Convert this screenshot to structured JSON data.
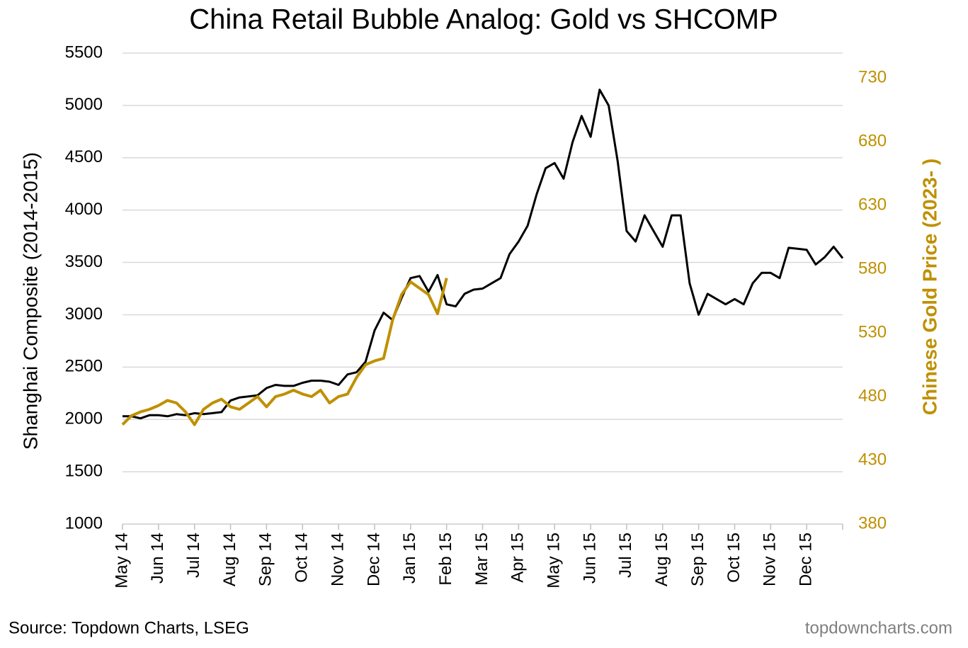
{
  "chart_data": {
    "type": "line",
    "title": "China Retail Bubble Analog: Gold vs SHCOMP",
    "y_label": "Shanghai Composite (2014-2015)",
    "y2_label": "Chinese Gold Price (2023- )",
    "source": "Source: Topdown Charts, LSEG",
    "watermark": "topdowncharts.com",
    "categories": [
      "May 14",
      null,
      null,
      null,
      "Jun 14",
      null,
      null,
      null,
      "Jul 14",
      null,
      null,
      null,
      "Aug 14",
      null,
      null,
      null,
      "Sep 14",
      null,
      null,
      null,
      "Oct 14",
      null,
      null,
      null,
      "Nov 14",
      null,
      null,
      null,
      "Dec 14",
      null,
      null,
      null,
      "Jan 15",
      null,
      null,
      null,
      "Feb 15",
      null,
      null,
      null,
      "Mar 15",
      null,
      null,
      null,
      "Apr 15",
      null,
      null,
      null,
      "May 15",
      null,
      null,
      null,
      "Jun 15",
      null,
      null,
      null,
      "Jul 15",
      null,
      null,
      null,
      "Aug 15",
      null,
      null,
      null,
      "Sep 15",
      null,
      null,
      null,
      "Oct 15",
      null,
      null,
      null,
      "Nov 15",
      null,
      null,
      null,
      "Dec 15",
      null,
      null,
      null,
      null
    ],
    "series": [
      {
        "name": "Shanghai Composite",
        "color": "#000000",
        "values": [
          2030,
          2030,
          2010,
          2040,
          2040,
          2030,
          2050,
          2040,
          2060,
          2050,
          2060,
          2070,
          2180,
          2210,
          2220,
          2230,
          2300,
          2330,
          2320,
          2320,
          2350,
          2370,
          2370,
          2360,
          2330,
          2430,
          2450,
          2550,
          2850,
          3020,
          2950,
          3160,
          3350,
          3370,
          3220,
          3380,
          3100,
          3080,
          3200,
          3240,
          3250,
          3300,
          3350,
          3580,
          3700,
          3850,
          4150,
          4400,
          4450,
          4300,
          4650,
          4900,
          4700,
          5150,
          5000,
          4470,
          3800,
          3700,
          3950,
          3800,
          3650,
          3950,
          3950,
          3300,
          3000,
          3200,
          3150,
          3100,
          3150,
          3100,
          3300,
          3400,
          3400,
          3350,
          3640,
          3630,
          3620,
          3480,
          3550,
          3650,
          3540
        ]
      },
      {
        "name": "Chinese Gold Price",
        "color": "#bf9000",
        "axis": "y2",
        "values": [
          458,
          465,
          468,
          470,
          473,
          477,
          475,
          468,
          458,
          470,
          475,
          478,
          472,
          470,
          475,
          480,
          472,
          480,
          482,
          485,
          482,
          480,
          485,
          475,
          480,
          482,
          495,
          505,
          508,
          510,
          540,
          560,
          570,
          565,
          560,
          545,
          573,
          null,
          null,
          null,
          null,
          null,
          null,
          null,
          null,
          null,
          null,
          null,
          null,
          null,
          null,
          null,
          null,
          null,
          null,
          null,
          null,
          null,
          null,
          null,
          null,
          null,
          null,
          null,
          null,
          null,
          null,
          null,
          null,
          null,
          null,
          null,
          null,
          null,
          null,
          null,
          null,
          null,
          null,
          null,
          null
        ]
      }
    ],
    "ylim": [
      1000,
      5500
    ],
    "yticks": [
      1000,
      1500,
      2000,
      2500,
      3000,
      3500,
      4000,
      4500,
      5000,
      5500
    ],
    "y2lim": [
      380,
      749.4
    ],
    "y2ticks": [
      380,
      430,
      480,
      530,
      580,
      630,
      680,
      730
    ],
    "grid": true
  }
}
